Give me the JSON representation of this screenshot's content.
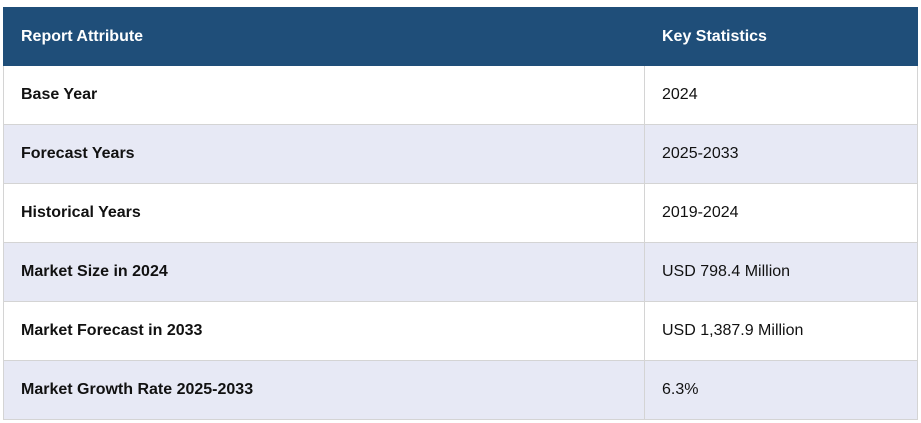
{
  "table": {
    "header": [
      "Report Attribute",
      "Key Statistics"
    ],
    "rows": [
      [
        "Base Year",
        "2024"
      ],
      [
        "Forecast Years",
        "2025-2033"
      ],
      [
        "Historical Years",
        "2019-2024"
      ],
      [
        "Market Size in 2024",
        "USD 798.4 Million"
      ],
      [
        "Market Forecast in 2033",
        "USD 1,387.9 Million"
      ],
      [
        "Market Growth Rate 2025-2033",
        "6.3%"
      ]
    ]
  }
}
